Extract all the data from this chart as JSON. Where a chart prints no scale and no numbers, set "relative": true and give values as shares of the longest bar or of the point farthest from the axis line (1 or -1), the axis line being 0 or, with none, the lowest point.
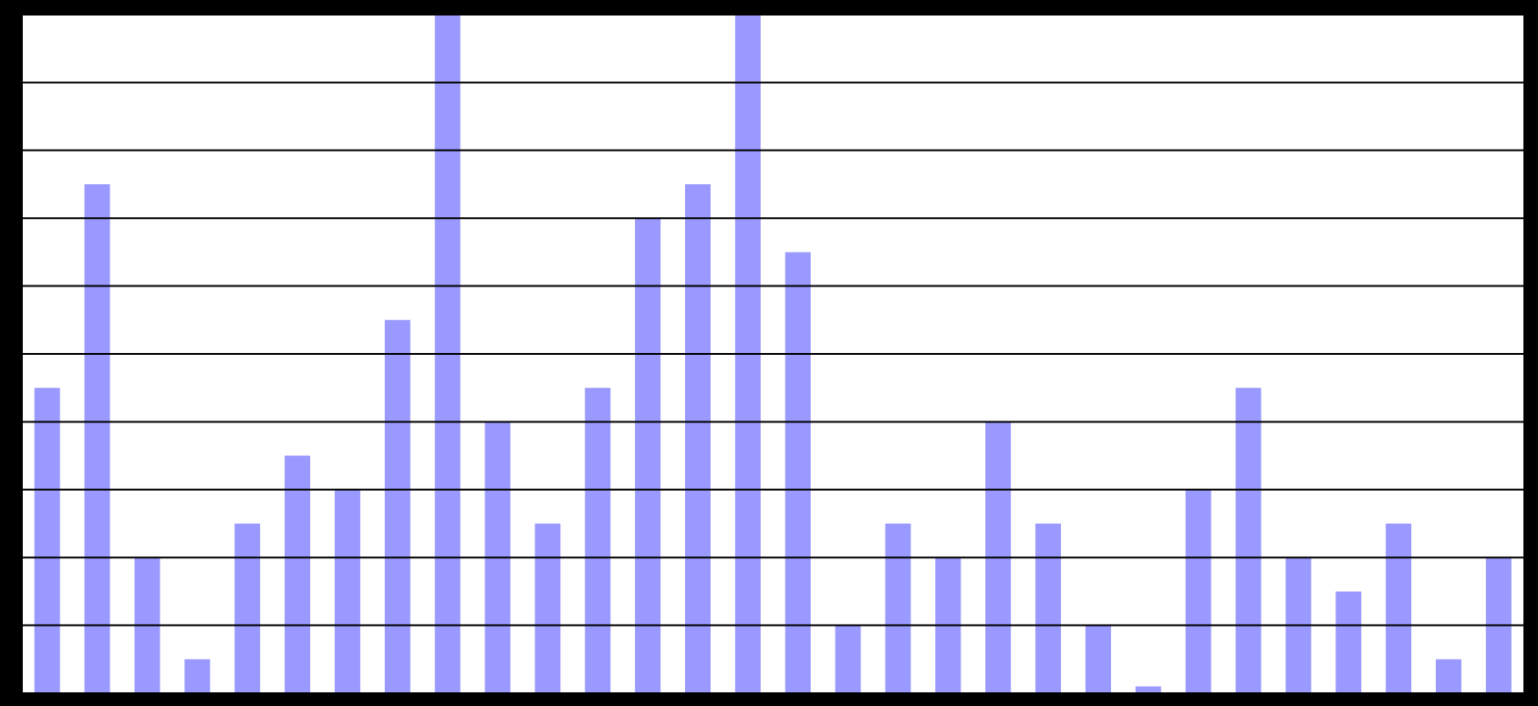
{
  "chart_data": {
    "type": "bar",
    "relative": true,
    "grid": "y",
    "color": "#9999ff",
    "tick_labels": false,
    "categories": [
      null,
      null,
      null,
      null,
      null,
      null,
      null,
      null,
      null,
      null,
      null,
      null,
      null,
      null,
      null,
      null,
      null,
      null,
      null,
      null,
      null,
      null,
      null,
      null,
      null,
      null,
      null,
      null,
      null,
      null
    ],
    "values": [
      0.45,
      0.75,
      0.2,
      0.05,
      0.25,
      0.35,
      0.3,
      0.55,
      1,
      0.4,
      0.25,
      0.45,
      0.7,
      0.75,
      1,
      0.65,
      0.1,
      0.25,
      0.2,
      0.4,
      0.25,
      0.1,
      0.01,
      0.3,
      0.45,
      0.2,
      0.15,
      0.25,
      0.05,
      0.2
    ]
  }
}
